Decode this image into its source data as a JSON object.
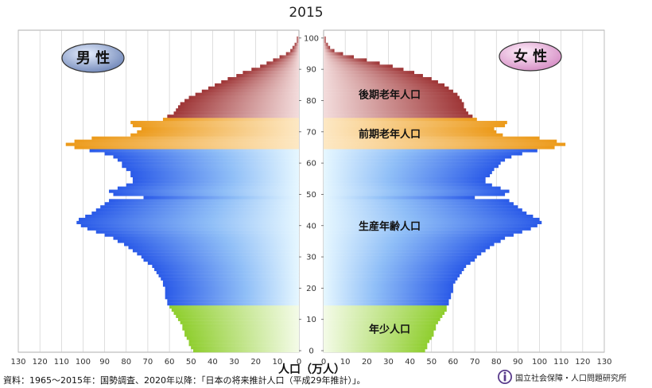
{
  "chart_data": {
    "type": "bar",
    "orientation": "horizontal",
    "title": "2015",
    "xlabel": "人口（万人）",
    "x_ticks_left": [
      130,
      120,
      110,
      100,
      90,
      80,
      70,
      60,
      50,
      40,
      30,
      20,
      10,
      0
    ],
    "x_ticks_right": [
      0,
      10,
      20,
      30,
      40,
      50,
      60,
      70,
      80,
      90,
      100,
      110,
      120,
      130
    ],
    "xlim": [
      0,
      130
    ],
    "y_ticks": [
      0,
      10,
      20,
      30,
      40,
      50,
      60,
      70,
      80,
      90,
      100
    ],
    "ylim": [
      0,
      102
    ],
    "grid": true,
    "legend_male": "男 性",
    "legend_female": "女 性",
    "groups": [
      {
        "label": "年少人口",
        "age_range": [
          0,
          14
        ],
        "color": "#8fce2e"
      },
      {
        "label": "生産年齢人口",
        "age_range": [
          15,
          64
        ],
        "color": "#2f63ea"
      },
      {
        "label": "前期老年人口",
        "age_range": [
          65,
          74
        ],
        "color": "#ec9a1a"
      },
      {
        "label": "後期老年人口",
        "age_range": [
          75,
          100
        ],
        "color": "#a0393b"
      }
    ],
    "ages": [
      0,
      1,
      2,
      3,
      4,
      5,
      6,
      7,
      8,
      9,
      10,
      11,
      12,
      13,
      14,
      15,
      16,
      17,
      18,
      19,
      20,
      21,
      22,
      23,
      24,
      25,
      26,
      27,
      28,
      29,
      30,
      31,
      32,
      33,
      34,
      35,
      36,
      37,
      38,
      39,
      40,
      41,
      42,
      43,
      44,
      45,
      46,
      47,
      48,
      49,
      50,
      51,
      52,
      53,
      54,
      55,
      56,
      57,
      58,
      59,
      60,
      61,
      62,
      63,
      64,
      65,
      66,
      67,
      68,
      69,
      70,
      71,
      72,
      73,
      74,
      75,
      76,
      77,
      78,
      79,
      80,
      81,
      82,
      83,
      84,
      85,
      86,
      87,
      88,
      89,
      90,
      91,
      92,
      93,
      94,
      95,
      96,
      97,
      98,
      99,
      100
    ],
    "series": [
      {
        "name": "男 性",
        "values": [
          49,
          50,
          51,
          51,
          52,
          53,
          53,
          54,
          54,
          55,
          56,
          57,
          58,
          59,
          60,
          61,
          61,
          62,
          62,
          62,
          62,
          63,
          63,
          64,
          65,
          66,
          67,
          68,
          70,
          72,
          73,
          75,
          77,
          79,
          81,
          84,
          86,
          90,
          94,
          98,
          101,
          103,
          102,
          99,
          96,
          94,
          92,
          90,
          88,
          72,
          86,
          88,
          84,
          80,
          77,
          77,
          78,
          78,
          80,
          82,
          82,
          84,
          86,
          90,
          97,
          104,
          108,
          104,
          96,
          78,
          75,
          73,
          77,
          78,
          63,
          61,
          58,
          57,
          56,
          55,
          53,
          51,
          48,
          45,
          42,
          39,
          36,
          33,
          29,
          26,
          22,
          18,
          15,
          12,
          9,
          6,
          4,
          3,
          2,
          1,
          1
        ]
      },
      {
        "name": "女 性",
        "values": [
          47,
          48,
          48,
          49,
          50,
          51,
          51,
          52,
          52,
          53,
          54,
          55,
          56,
          57,
          57,
          58,
          58,
          59,
          59,
          60,
          60,
          60,
          61,
          62,
          63,
          64,
          65,
          66,
          68,
          70,
          71,
          73,
          75,
          77,
          79,
          82,
          84,
          88,
          92,
          96,
          99,
          101,
          100,
          97,
          94,
          92,
          90,
          88,
          86,
          70,
          84,
          86,
          82,
          78,
          75,
          75,
          77,
          78,
          79,
          81,
          82,
          84,
          87,
          92,
          99,
          107,
          112,
          108,
          100,
          83,
          80,
          79,
          84,
          85,
          71,
          69,
          67,
          66,
          65,
          65,
          64,
          63,
          62,
          60,
          58,
          56,
          53,
          50,
          46,
          42,
          37,
          32,
          26,
          20,
          14,
          9,
          5,
          3,
          2,
          1,
          1
        ]
      }
    ]
  },
  "footer": {
    "source": "資料：1965～2015年：国勢調査、2020年以降：「日本の将来推計人口（平成29年推計）」。",
    "organization": "国立社会保障・人口問題研究所"
  }
}
